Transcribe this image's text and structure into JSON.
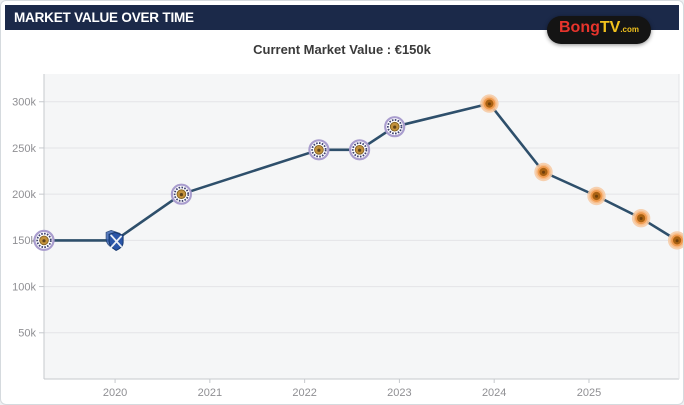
{
  "header": {
    "title": "MARKET VALUE OVER TIME"
  },
  "logo": {
    "part1": "Bong",
    "part2": "TV",
    "part3": ".com"
  },
  "subtitle": "Current Market Value : €150k",
  "chart_data": {
    "type": "line",
    "title": "Current Market Value : €150k",
    "xlabel": "",
    "ylabel": "",
    "unit": "EUR (thousands)",
    "grid": true,
    "legend_position": "none",
    "xlim": [
      2019.25,
      2025.95
    ],
    "ylim_k": [
      0,
      330
    ],
    "x_ticks": [
      {
        "year": 2020,
        "label": "2020"
      },
      {
        "year": 2021,
        "label": "2021"
      },
      {
        "year": 2022,
        "label": "2022"
      },
      {
        "year": 2023,
        "label": "2023"
      },
      {
        "year": 2024,
        "label": "2024"
      },
      {
        "year": 2025,
        "label": "2025"
      }
    ],
    "y_ticks": [
      {
        "value_k": 50,
        "label": "50k"
      },
      {
        "value_k": 100,
        "label": "100k"
      },
      {
        "value_k": 150,
        "label": "150k"
      },
      {
        "value_k": 200,
        "label": "200k"
      },
      {
        "value_k": 250,
        "label": "250k"
      },
      {
        "value_k": 300,
        "label": "300k"
      }
    ],
    "points": [
      {
        "x": 2019.25,
        "value_k": 150,
        "marker": "purple-crest-icon"
      },
      {
        "x": 2020.0,
        "value_k": 150,
        "marker": "blue-shield-icon"
      },
      {
        "x": 2020.7,
        "value_k": 200,
        "marker": "purple-crest-icon"
      },
      {
        "x": 2022.15,
        "value_k": 248,
        "marker": "purple-crest-icon"
      },
      {
        "x": 2022.58,
        "value_k": 248,
        "marker": "purple-crest-icon"
      },
      {
        "x": 2022.95,
        "value_k": 273,
        "marker": "purple-crest-icon"
      },
      {
        "x": 2023.95,
        "value_k": 298,
        "marker": "orange-crest-icon"
      },
      {
        "x": 2024.52,
        "value_k": 224,
        "marker": "orange-crest-icon"
      },
      {
        "x": 2025.08,
        "value_k": 198,
        "marker": "orange-crest-icon"
      },
      {
        "x": 2025.55,
        "value_k": 174,
        "marker": "orange-crest-icon"
      },
      {
        "x": 2025.93,
        "value_k": 150,
        "marker": "orange-crest-icon"
      }
    ],
    "colors": {
      "line": "#2e4f6b",
      "plot_background": "#f5f6f7",
      "gridline": "#e3e4e7",
      "axis": "#c6c9cd",
      "header_background": "#1b2949",
      "logo_red": "#e7342c",
      "logo_yellow": "#f2c21d",
      "purple_crest_ring": "#a99dce",
      "purple_crest_center": "#c2913c",
      "blue_shield": "#2a55a8",
      "orange_crest_halo": "#f6c9a2",
      "orange_crest_ring": "#ef9a4e",
      "orange_crest_center": "#a96112"
    }
  }
}
